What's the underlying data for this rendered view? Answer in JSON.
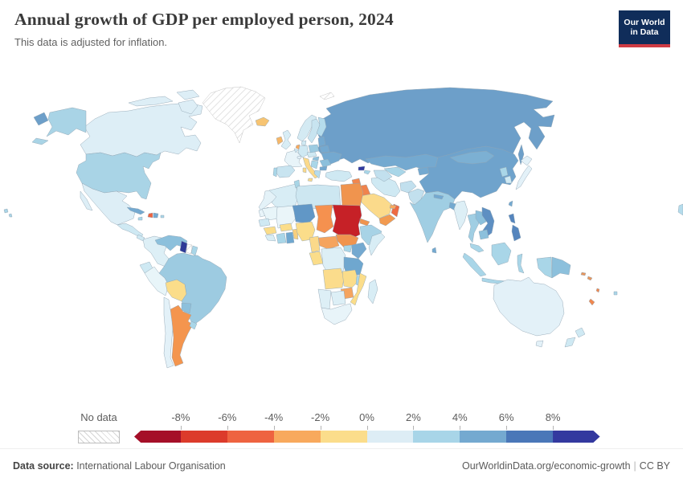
{
  "header": {
    "title": "Annual growth of GDP per employed person, 2024",
    "subtitle": "This data is adjusted for inflation."
  },
  "logo": {
    "line1": "Our World",
    "line2": "in Data"
  },
  "legend": {
    "no_data_label": "No data",
    "ticks": [
      "-8%",
      "-6%",
      "-4%",
      "-2%",
      "0%",
      "2%",
      "4%",
      "6%",
      "8%"
    ],
    "bins": [
      {
        "label": "< -8%",
        "color": "#a50f28"
      },
      {
        "label": "-8% to -6%",
        "color": "#dc3b2b"
      },
      {
        "label": "-6% to -4%",
        "color": "#ee6340"
      },
      {
        "label": "-4% to -2%",
        "color": "#f8a95d"
      },
      {
        "label": "-2% to 0%",
        "color": "#fbdd8b"
      },
      {
        "label": "0% to 2%",
        "color": "#ddedf5"
      },
      {
        "label": "2% to 4%",
        "color": "#a8d5e8"
      },
      {
        "label": "4% to 6%",
        "color": "#74a9d0"
      },
      {
        "label": "6% to 8%",
        "color": "#4a77b8"
      },
      {
        "label": "> 8%",
        "color": "#33399f"
      }
    ]
  },
  "footer": {
    "source_label": "Data source:",
    "source_value": " International Labour Organisation",
    "right_link": "OurWorldinData.org/economic-growth",
    "separator": "|",
    "license": "CC BY"
  },
  "chart_data": {
    "type": "choropleth",
    "title": "Annual growth of GDP per employed person, 2024",
    "subtitle": "This data is adjusted for inflation.",
    "unit": "%",
    "legend_ticks": [
      "-8%",
      "-6%",
      "-4%",
      "-2%",
      "0%",
      "2%",
      "4%",
      "6%",
      "8%"
    ],
    "bins": [
      {
        "label": "< -8%",
        "color": "#a50f28"
      },
      {
        "label": "-8% to -6%",
        "color": "#dc3b2b"
      },
      {
        "label": "-6% to -4%",
        "color": "#ee6340"
      },
      {
        "label": "-4% to -2%",
        "color": "#f8a95d"
      },
      {
        "label": "-2% to 0%",
        "color": "#fbdd8b"
      },
      {
        "label": "0% to 2%",
        "color": "#ddedf5"
      },
      {
        "label": "2% to 4%",
        "color": "#a8d5e8"
      },
      {
        "label": "4% to 6%",
        "color": "#74a9d0"
      },
      {
        "label": "6% to 8%",
        "color": "#4a77b8"
      },
      {
        "label": "> 8%",
        "color": "#33399f"
      }
    ],
    "no_data_label": "No data",
    "regions_by_bin": {
      "> 8%": [
        "Guyana",
        "Georgia"
      ],
      "6% to 8%": [
        "Vietnam",
        "Philippines"
      ],
      "4% to 6%": [
        "Russia",
        "China",
        "Mongolia",
        "Kazakhstan",
        "Ukraine",
        "Belarus",
        "Baltic states",
        "Cuba",
        "Dominican Republic",
        "Kenya",
        "Tanzania",
        "Ghana",
        "Niger",
        "Bulgaria",
        "Nepal",
        "Bangladesh",
        "Sri Lanka",
        "Taiwan"
      ],
      "2% to 4%": [
        "United States",
        "Brazil",
        "Venezuela",
        "India",
        "Thailand",
        "Laos",
        "Cambodia",
        "Paraguay",
        "Poland",
        "Romania",
        "Hungary",
        "Indonesia",
        "Malaysia",
        "Papua New Guinea",
        "Uruguay",
        "Ethiopia",
        "Uganda",
        "Finland",
        "Greece",
        "Tunisia",
        "Portugal",
        "Sweden",
        "Spain",
        "North Korea",
        "Fiji"
      ],
      "0% to 2%": [
        "Canada",
        "Mexico",
        "Colombia",
        "Peru",
        "Chile",
        "Ecuador",
        "France",
        "Germany",
        "United Kingdom",
        "Norway",
        "Denmark",
        "Japan",
        "Australia",
        "New Zealand",
        "South Korea",
        "Iran",
        "Turkey",
        "Myanmar",
        "DR Congo",
        "Somalia",
        "Madagascar",
        "South Africa",
        "Botswana",
        "Namibia",
        "Morocco",
        "Algeria",
        "Libya",
        "Mauritania",
        "Mali",
        "Senegal",
        "Afghanistan",
        "Pakistan"
      ],
      "-2% to 0%": [
        "Bolivia",
        "Nigeria",
        "Saudi Arabia",
        "Italy",
        "Angola",
        "Zambia",
        "Mozambique",
        "Guinea",
        "Burkina Faso",
        "Cameroon",
        "Iceland"
      ],
      "-4% to -2%": [
        "Argentina",
        "Netherlands",
        "Ireland",
        "United Arab Emirates",
        "Jordan",
        "Yemen",
        "Egypt",
        "Eritrea",
        "South Sudan",
        "Chad",
        "Central African Republic",
        "Zimbabwe",
        "Solomon Islands"
      ],
      "-6% to -4%": [
        "Haiti",
        "Oman",
        "Syria",
        "Iraq",
        "New Caledonia",
        "Vanuatu"
      ],
      "-8% to -6%": [
        "Sudan",
        "Israel"
      ],
      "No data": [
        "Greenland",
        "Suriname",
        "Svalbard"
      ]
    }
  },
  "map": {
    "ocean": "#ffffff",
    "border_color": "#91a5b3",
    "regions": [
      {
        "id": "canada",
        "name": "Canada",
        "fill": "#ddeef6"
      },
      {
        "id": "greenland",
        "name": "Greenland",
        "fill": "hatch"
      },
      {
        "id": "iceland",
        "name": "Iceland",
        "fill": "#f7c472"
      },
      {
        "id": "usa",
        "name": "United States",
        "fill": "#a9d4e6"
      },
      {
        "id": "mexico",
        "name": "Mexico",
        "fill": "#ddeef6"
      },
      {
        "id": "central-america",
        "name": "Central America",
        "fill": "#cfe9f3"
      },
      {
        "id": "cuba",
        "name": "Cuba",
        "fill": "#74a9d0"
      },
      {
        "id": "jamaica",
        "name": "Jamaica",
        "fill": "#a9d6e8"
      },
      {
        "id": "haiti",
        "name": "Haiti",
        "fill": "#ee6340"
      },
      {
        "id": "dominican-republic",
        "name": "Dominican Republic",
        "fill": "#74a9d0"
      },
      {
        "id": "puerto-rico",
        "name": "Puerto Rico",
        "fill": "#a9d6e8"
      },
      {
        "id": "colombia",
        "name": "Colombia",
        "fill": "#ddeff6"
      },
      {
        "id": "venezuela",
        "name": "Venezuela",
        "fill": "#8cc0dc"
      },
      {
        "id": "guyana",
        "name": "Guyana",
        "fill": "#2e3a97"
      },
      {
        "id": "suriname",
        "name": "Suriname",
        "fill": "hatch"
      },
      {
        "id": "french-guiana",
        "name": "French Guiana",
        "fill": "#a9d6e8"
      },
      {
        "id": "ecuador",
        "name": "Ecuador",
        "fill": "#cfe9f3"
      },
      {
        "id": "peru",
        "name": "Peru",
        "fill": "#e8f5f9"
      },
      {
        "id": "brazil",
        "name": "Brazil",
        "fill": "#9dcbe1"
      },
      {
        "id": "bolivia",
        "name": "Bolivia",
        "fill": "#fbdd8a"
      },
      {
        "id": "paraguay",
        "name": "Paraguay",
        "fill": "#8cc0dc"
      },
      {
        "id": "chile",
        "name": "Chile",
        "fill": "#e3f1f8"
      },
      {
        "id": "argentina",
        "name": "Argentina",
        "fill": "#f4954e"
      },
      {
        "id": "uruguay",
        "name": "Uruguay",
        "fill": "#a9d6e8"
      },
      {
        "id": "norway",
        "name": "Norway",
        "fill": "#d4eaf3"
      },
      {
        "id": "sweden",
        "name": "Sweden",
        "fill": "#c8e4f0"
      },
      {
        "id": "finland",
        "name": "Finland",
        "fill": "#b5dcec"
      },
      {
        "id": "denmark",
        "name": "Denmark",
        "fill": "#cfe9f3"
      },
      {
        "id": "uk",
        "name": "United Kingdom",
        "fill": "#d8edf5"
      },
      {
        "id": "ireland",
        "name": "Ireland",
        "fill": "#f7b768"
      },
      {
        "id": "netherlands",
        "name": "Netherlands",
        "fill": "#f8a95d"
      },
      {
        "id": "belgium",
        "name": "Belgium",
        "fill": "#cfe9f3"
      },
      {
        "id": "germany",
        "name": "Germany",
        "fill": "#cfe9f3"
      },
      {
        "id": "france",
        "name": "France",
        "fill": "#e8f4f9"
      },
      {
        "id": "spain",
        "name": "Spain",
        "fill": "#c8e4f0"
      },
      {
        "id": "portugal",
        "name": "Portugal",
        "fill": "#a9d6e8"
      },
      {
        "id": "italy",
        "name": "Italy",
        "fill": "#fbd98a"
      },
      {
        "id": "switzerland",
        "name": "Switzerland",
        "fill": "#e3f1f8"
      },
      {
        "id": "austria-czech",
        "name": "Austria / Czechia",
        "fill": "#cfe9f3"
      },
      {
        "id": "poland",
        "name": "Poland",
        "fill": "#9dcbe1"
      },
      {
        "id": "baltics",
        "name": "Baltic states",
        "fill": "#74a9d0"
      },
      {
        "id": "belarus",
        "name": "Belarus",
        "fill": "#74a9d0"
      },
      {
        "id": "ukraine",
        "name": "Ukraine",
        "fill": "#74a9d0"
      },
      {
        "id": "romania",
        "name": "Romania",
        "fill": "#8cc0dc"
      },
      {
        "id": "hungary",
        "name": "Hungary",
        "fill": "#8cc0dc"
      },
      {
        "id": "balkans",
        "name": "Balkans",
        "fill": "#a9d6e8"
      },
      {
        "id": "bulgaria",
        "name": "Bulgaria",
        "fill": "#74a9d0"
      },
      {
        "id": "greece",
        "name": "Greece",
        "fill": "#b5dcec"
      },
      {
        "id": "svalbard",
        "name": "Svalbard",
        "fill": "hatch"
      },
      {
        "id": "russia",
        "name": "Russia",
        "fill": "#6d9fc9"
      },
      {
        "id": "kazakhstan",
        "name": "Kazakhstan",
        "fill": "#74a9d0"
      },
      {
        "id": "uzbekistan",
        "name": "Uzbekistan",
        "fill": "#a9d6e8"
      },
      {
        "id": "turkmenistan",
        "name": "Turkmenistan",
        "fill": "#c2e0ee"
      },
      {
        "id": "kyrgyzstan-tajikistan",
        "name": "Kyrgyzstan / Tajikistan",
        "fill": "#74a9d0"
      },
      {
        "id": "georgia",
        "name": "Georgia",
        "fill": "#33399f"
      },
      {
        "id": "azerbaijan",
        "name": "Azerbaijan",
        "fill": "#a9d6e8"
      },
      {
        "id": "turkey",
        "name": "Turkey",
        "fill": "#cfe9f3"
      },
      {
        "id": "syria",
        "name": "Syria",
        "fill": "#f1874e"
      },
      {
        "id": "iraq",
        "name": "Iraq",
        "fill": "#f0834c"
      },
      {
        "id": "israel",
        "name": "Israel",
        "fill": "#dc3b2b"
      },
      {
        "id": "jordan",
        "name": "Jordan",
        "fill": "#f8a95d"
      },
      {
        "id": "saudi-arabia",
        "name": "Saudi Arabia",
        "fill": "#fbda8b"
      },
      {
        "id": "yemen",
        "name": "Yemen",
        "fill": "#f29a50"
      },
      {
        "id": "oman",
        "name": "Oman",
        "fill": "#ee6a42"
      },
      {
        "id": "uae",
        "name": "United Arab Emirates",
        "fill": "#f8a95d"
      },
      {
        "id": "iran",
        "name": "Iran",
        "fill": "#cfe9f3"
      },
      {
        "id": "afghanistan",
        "name": "Afghanistan",
        "fill": "#c2e0ee"
      },
      {
        "id": "pakistan",
        "name": "Pakistan",
        "fill": "#c2e0ee"
      },
      {
        "id": "india",
        "name": "India",
        "fill": "#a0cee3"
      },
      {
        "id": "nepal",
        "name": "Nepal",
        "fill": "#74a9d0"
      },
      {
        "id": "bangladesh",
        "name": "Bangladesh",
        "fill": "#74a9d0"
      },
      {
        "id": "sri-lanka",
        "name": "Sri Lanka",
        "fill": "#74a9d0"
      },
      {
        "id": "china",
        "name": "China",
        "fill": "#6fa3cc"
      },
      {
        "id": "mongolia",
        "name": "Mongolia",
        "fill": "#7cb0d3"
      },
      {
        "id": "north-korea",
        "name": "North Korea",
        "fill": "#a9d6e8"
      },
      {
        "id": "south-korea",
        "name": "South Korea",
        "fill": "#cfe9f3"
      },
      {
        "id": "japan",
        "name": "Japan",
        "fill": "#e3f1f8"
      },
      {
        "id": "taiwan",
        "name": "Taiwan",
        "fill": "#74a9d0"
      },
      {
        "id": "myanmar",
        "name": "Myanmar",
        "fill": "#ddeff6"
      },
      {
        "id": "thailand",
        "name": "Thailand",
        "fill": "#a0cee3"
      },
      {
        "id": "laos",
        "name": "Laos",
        "fill": "#8cc0dc"
      },
      {
        "id": "vietnam",
        "name": "Vietnam",
        "fill": "#5e8fc2"
      },
      {
        "id": "cambodia",
        "name": "Cambodia",
        "fill": "#8cc0dc"
      },
      {
        "id": "malaysia",
        "name": "Malaysia",
        "fill": "#a9d6e8"
      },
      {
        "id": "indonesia",
        "name": "Indonesia",
        "fill": "#a9d6e8"
      },
      {
        "id": "philippines",
        "name": "Philippines",
        "fill": "#5585bd"
      },
      {
        "id": "papua-new-guinea",
        "name": "Papua New Guinea",
        "fill": "#8cc0dc"
      },
      {
        "id": "australia",
        "name": "Australia",
        "fill": "#e3f1f8"
      },
      {
        "id": "new-zealand",
        "name": "New Zealand",
        "fill": "#cfe9f3"
      },
      {
        "id": "new-caledonia",
        "name": "New Caledonia",
        "fill": "#f1874e"
      },
      {
        "id": "vanuatu",
        "name": "Vanuatu",
        "fill": "#f1874e"
      },
      {
        "id": "solomon-islands",
        "name": "Solomon Islands",
        "fill": "#e8955c"
      },
      {
        "id": "fiji",
        "name": "Fiji",
        "fill": "#a9d6e8"
      },
      {
        "id": "pacific-islands",
        "name": "Pacific islands",
        "fill": "#b5dcec"
      },
      {
        "id": "hawaii",
        "name": "Hawaii",
        "fill": "#a9d4e6"
      },
      {
        "id": "morocco",
        "name": "Morocco",
        "fill": "#e4f2f8"
      },
      {
        "id": "western-sahara",
        "name": "Western Sahara",
        "fill": "#e8f4f9"
      },
      {
        "id": "algeria",
        "name": "Algeria",
        "fill": "#d8edf5"
      },
      {
        "id": "tunisia",
        "name": "Tunisia",
        "fill": "#a8d5e6"
      },
      {
        "id": "libya",
        "name": "Libya",
        "fill": "#cde7f1"
      },
      {
        "id": "egypt",
        "name": "Egypt",
        "fill": "#f0944e"
      },
      {
        "id": "mauritania",
        "name": "Mauritania",
        "fill": "#e8f5f9"
      },
      {
        "id": "mali",
        "name": "Mali",
        "fill": "#eaf5f9"
      },
      {
        "id": "senegal",
        "name": "Senegal",
        "fill": "#cfe9f3"
      },
      {
        "id": "guinea",
        "name": "Guinea",
        "fill": "#fbdd8a"
      },
      {
        "id": "sierra-leone-liberia",
        "name": "Sierra Leone / Liberia",
        "fill": "#d8edf5"
      },
      {
        "id": "ivory-coast",
        "name": "Ivory Coast",
        "fill": "#a9d6e8"
      },
      {
        "id": "ghana",
        "name": "Ghana",
        "fill": "#6fa7cf"
      },
      {
        "id": "burkina-faso",
        "name": "Burkina Faso",
        "fill": "#fbdd8a"
      },
      {
        "id": "benin-togo",
        "name": "Benin / Togo",
        "fill": "#f8cf7e"
      },
      {
        "id": "niger",
        "name": "Niger",
        "fill": "#6197c6"
      },
      {
        "id": "nigeria",
        "name": "Nigeria",
        "fill": "#fbdd8a"
      },
      {
        "id": "chad",
        "name": "Chad",
        "fill": "#f5914f"
      },
      {
        "id": "sudan",
        "name": "Sudan",
        "fill": "#c62127"
      },
      {
        "id": "eritrea",
        "name": "Eritrea",
        "fill": "#f0944e"
      },
      {
        "id": "ethiopia",
        "name": "Ethiopia",
        "fill": "#a8d3e6"
      },
      {
        "id": "somalia",
        "name": "Somalia",
        "fill": "#d8edf5"
      },
      {
        "id": "south-sudan",
        "name": "South Sudan",
        "fill": "#f0944e"
      },
      {
        "id": "central-african-republic",
        "name": "Central African Republic",
        "fill": "#f5a45f"
      },
      {
        "id": "cameroon",
        "name": "Cameroon",
        "fill": "#fbd98a"
      },
      {
        "id": "gabon-congo",
        "name": "Gabon / Congo",
        "fill": "#fbdd8a"
      },
      {
        "id": "drc",
        "name": "DR Congo",
        "fill": "#ddeff6"
      },
      {
        "id": "uganda",
        "name": "Uganda",
        "fill": "#a9d6e8"
      },
      {
        "id": "kenya",
        "name": "Kenya",
        "fill": "#74a9d0"
      },
      {
        "id": "tanzania",
        "name": "Tanzania",
        "fill": "#6fa7cf"
      },
      {
        "id": "angola",
        "name": "Angola",
        "fill": "#fbdc8c"
      },
      {
        "id": "zambia",
        "name": "Zambia",
        "fill": "#fbdd8a"
      },
      {
        "id": "malawi",
        "name": "Malawi",
        "fill": "#a9d6e8"
      },
      {
        "id": "mozambique",
        "name": "Mozambique",
        "fill": "#fbdd8a"
      },
      {
        "id": "zimbabwe",
        "name": "Zimbabwe",
        "fill": "#f5a45f"
      },
      {
        "id": "botswana",
        "name": "Botswana",
        "fill": "#ddeff6"
      },
      {
        "id": "namibia",
        "name": "Namibia",
        "fill": "#ddeff6"
      },
      {
        "id": "south-africa",
        "name": "South Africa",
        "fill": "#e8f4f9"
      },
      {
        "id": "madagascar",
        "name": "Madagascar",
        "fill": "#d8edf5"
      }
    ]
  }
}
